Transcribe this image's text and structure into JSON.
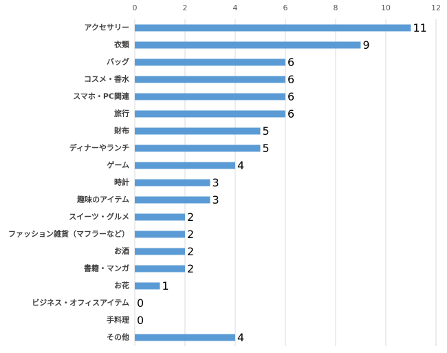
{
  "chart_data": {
    "type": "bar",
    "orientation": "horizontal",
    "categories": [
      "アクセサリー",
      "衣類",
      "バッグ",
      "コスメ・香水",
      "スマホ・PC関連",
      "旅行",
      "財布",
      "ディナーやランチ",
      "ゲーム",
      "時計",
      "趣味のアイテム",
      "スイーツ・グルメ",
      "ファッション雑貨（マフラーなど）",
      "お酒",
      "書籍・マンガ",
      "お花",
      "ビジネス・オフィスアイテム",
      "手料理",
      "その他"
    ],
    "values": [
      11,
      9,
      6,
      6,
      6,
      6,
      5,
      5,
      4,
      3,
      3,
      2,
      2,
      2,
      2,
      1,
      0,
      0,
      4
    ],
    "color": "#5b9bd5",
    "xlim": [
      0,
      12
    ],
    "xticks": [
      0,
      2,
      4,
      6,
      8,
      10,
      12
    ],
    "grid": true
  }
}
